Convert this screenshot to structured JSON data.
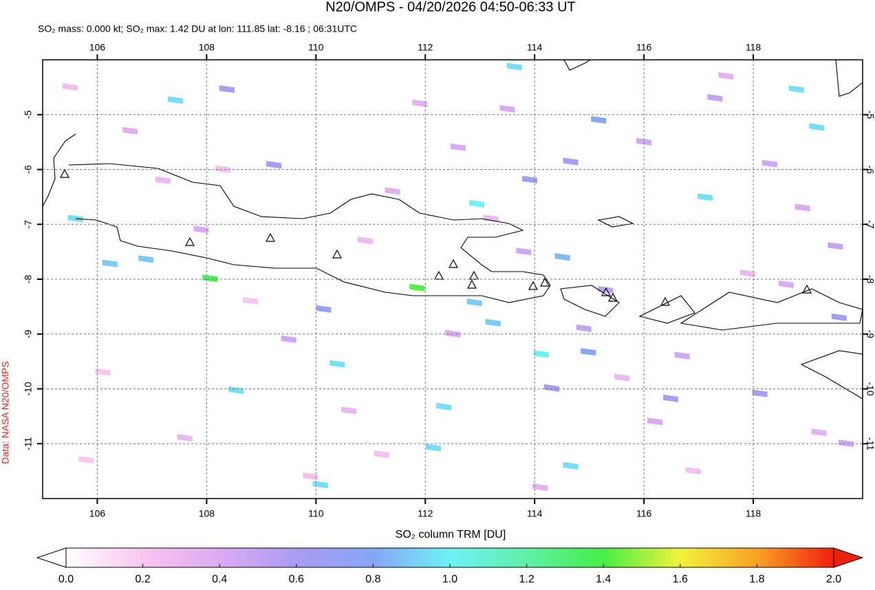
{
  "chart_data": {
    "type": "map",
    "title": "N20/OMPS - 04/20/2026 04:50-06:33 UT",
    "subtitle": "SO₂ mass: 0.000 kt; SO₂ max: 1.42 DU at lon: 111.85 lat: -8.16 ; 06:31UTC",
    "colorbar_label": "SO₂ column TRM [DU]",
    "credit": "Data: NASA N20/OMPS",
    "xlim": [
      105,
      120
    ],
    "ylim": [
      -12,
      -4
    ],
    "xticks": [
      106,
      108,
      110,
      112,
      114,
      116,
      118
    ],
    "yticks": [
      -5,
      -6,
      -7,
      -8,
      -9,
      -10,
      -11
    ],
    "grid": true,
    "clim": [
      0,
      2
    ],
    "cticks": [
      {
        "value": 0,
        "label": "0.0"
      },
      0.2,
      0.4,
      0.6,
      0.8,
      {
        "value": 1,
        "label": "1.0"
      },
      1.2,
      1.4,
      1.6,
      1.8,
      {
        "value": 2,
        "label": "2.0"
      }
    ],
    "colormap": [
      "#ffffff",
      "#f9c6ef",
      "#dcaaf2",
      "#ab9cf2",
      "#86a6f8",
      "#6ef2f6",
      "#5ef0a6",
      "#46ee46",
      "#f2f23c",
      "#f8a224",
      "#f0200e"
    ],
    "x": [
      111.85,
      108.06,
      112.94,
      113.63,
      119.16,
      118.79,
      117.12,
      114.12,
      114.66,
      110.08,
      112.34,
      112.15,
      112.9,
      113.24,
      114.51,
      115.17,
      114.98,
      107.43,
      106.23,
      106.89,
      105.6,
      110.39,
      108.54,
      114.66,
      113.91,
      114.31,
      118.12,
      119.57,
      110.14,
      109.23,
      108.37,
      116.49,
      105.5,
      106.6,
      107.2,
      107.9,
      108.8,
      109.5,
      110.6,
      111.2,
      111.9,
      112.6,
      113.2,
      113.8,
      114.9,
      115.6,
      116.2,
      116.9,
      117.5,
      118.3,
      118.9,
      119.5,
      106.1,
      107.6,
      109.9,
      111.4,
      113.5,
      115.3,
      116.7,
      117.9,
      119.2,
      105.8,
      108.3,
      110.9,
      112.5,
      114.1,
      116.0,
      117.3,
      118.6,
      119.7
    ],
    "y": [
      -8.16,
      -7.99,
      -6.63,
      -4.13,
      -5.23,
      -4.54,
      -6.51,
      -9.37,
      -11.41,
      -11.75,
      -10.33,
      -11.08,
      -8.43,
      -8.8,
      -7.6,
      -5.1,
      -9.33,
      -4.74,
      -7.72,
      -7.64,
      -6.9,
      -9.55,
      -10.03,
      -5.86,
      -6.19,
      -9.99,
      -10.09,
      -8.7,
      -8.55,
      -5.92,
      -4.54,
      -10.18,
      -4.5,
      -5.3,
      -6.2,
      -7.1,
      -8.4,
      -9.1,
      -10.4,
      -11.2,
      -4.8,
      -5.6,
      -6.9,
      -7.5,
      -8.9,
      -9.8,
      -10.6,
      -11.5,
      -4.3,
      -5.9,
      -6.7,
      -7.4,
      -9.7,
      -10.9,
      -11.6,
      -6.4,
      -4.9,
      -8.2,
      -9.4,
      -7.9,
      -10.8,
      -11.3,
      -6.0,
      -7.3,
      -9.0,
      -11.8,
      -5.5,
      -4.7,
      -8.1,
      -11.0
    ],
    "values": [
      1.42,
      1.35,
      1.0,
      0.95,
      0.95,
      0.95,
      0.95,
      1.0,
      0.95,
      0.95,
      0.95,
      0.95,
      0.9,
      0.9,
      0.85,
      0.8,
      0.8,
      0.95,
      0.9,
      0.9,
      0.95,
      0.95,
      0.95,
      0.65,
      0.7,
      0.65,
      0.6,
      0.65,
      0.7,
      0.6,
      0.6,
      0.6,
      0.25,
      0.35,
      0.3,
      0.4,
      0.2,
      0.45,
      0.3,
      0.25,
      0.35,
      0.4,
      0.3,
      0.45,
      0.5,
      0.3,
      0.4,
      0.25,
      0.35,
      0.45,
      0.4,
      0.5,
      0.2,
      0.3,
      0.25,
      0.35,
      0.4,
      0.5,
      0.45,
      0.3,
      0.35,
      0.2,
      0.25,
      0.3,
      0.4,
      0.35,
      0.45,
      0.5,
      0.4,
      0.45
    ]
  }
}
